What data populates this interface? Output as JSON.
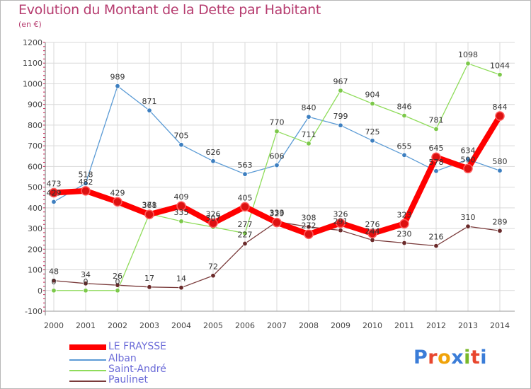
{
  "header": {
    "title": "Evolution du Montant de la Dette par Habitant",
    "unit": "(en €)"
  },
  "colors": {
    "title": "#b63c6f",
    "grid": "#d9d9d9",
    "axis_tick": "#cc2255",
    "legend_text": "#6b6bd8"
  },
  "logo": {
    "text": "Proxiti",
    "letter_colors": [
      "#3b7dd8",
      "#e8462e",
      "#f0a30a",
      "#3b7dd8",
      "#79b829",
      "#e8462e",
      "#3b7dd8"
    ]
  },
  "chart_data": {
    "type": "line",
    "title": "Evolution du Montant de la Dette par Habitant",
    "ylabel": "(en €)",
    "xlabel": "",
    "ylim": [
      -100,
      1200
    ],
    "yticks": [
      -100,
      0,
      100,
      200,
      300,
      400,
      500,
      600,
      700,
      800,
      900,
      1000,
      1100,
      1200
    ],
    "grid": true,
    "categories": [
      "2000",
      "2001",
      "2002",
      "2003",
      "2004",
      "2005",
      "2006",
      "2007",
      "2008",
      "2009",
      "2010",
      "2011",
      "2012",
      "2013",
      "2014"
    ],
    "series": [
      {
        "name": "LE FRAYSSE",
        "color": "#ff0000",
        "marker": "#dd1111",
        "thick": true,
        "values": [
          473,
          482,
          429,
          368,
          409,
          326,
          405,
          329,
          272,
          326,
          276,
          323,
          645,
          590,
          844
        ]
      },
      {
        "name": "Alban",
        "color": "#5b9bd5",
        "marker": "#3d7fc0",
        "thick": false,
        "values": [
          429,
          518,
          989,
          871,
          705,
          626,
          563,
          606,
          840,
          799,
          725,
          655,
          578,
          634,
          580
        ]
      },
      {
        "name": "Saint-André",
        "color": "#8fdc5a",
        "marker": "#7cc84a",
        "thick": false,
        "values": [
          0,
          0,
          0,
          371,
          335,
          307,
          277,
          770,
          711,
          967,
          904,
          846,
          781,
          1098,
          1044
        ]
      },
      {
        "name": "Paulinet",
        "color": "#7a3b3b",
        "marker": "#6a2a2a",
        "thick": false,
        "values": [
          48,
          34,
          26,
          17,
          14,
          72,
          227,
          333,
          308,
          291,
          244,
          230,
          216,
          310,
          289
        ]
      }
    ],
    "data_labels": [
      [
        "473",
        "482",
        "429",
        "368",
        "409",
        "326",
        "405",
        "329",
        "272",
        "326",
        "276",
        "323",
        "645",
        "590",
        "844"
      ],
      [
        "429",
        "518",
        "989",
        "871",
        "705",
        "626",
        "563",
        "606",
        "840",
        "799",
        "725",
        "655",
        "578",
        "634",
        "580"
      ],
      [
        "0",
        "0",
        "0",
        "371",
        "335",
        "307",
        "277",
        "770",
        "711",
        "967",
        "904",
        "846",
        "781",
        "1098",
        "1044"
      ],
      [
        "48",
        "34",
        "26",
        "17",
        "14",
        "72",
        "227",
        "333",
        "308",
        "291",
        "244",
        "230",
        "216",
        "310",
        "289"
      ]
    ],
    "legend_position": "bottom-left"
  }
}
